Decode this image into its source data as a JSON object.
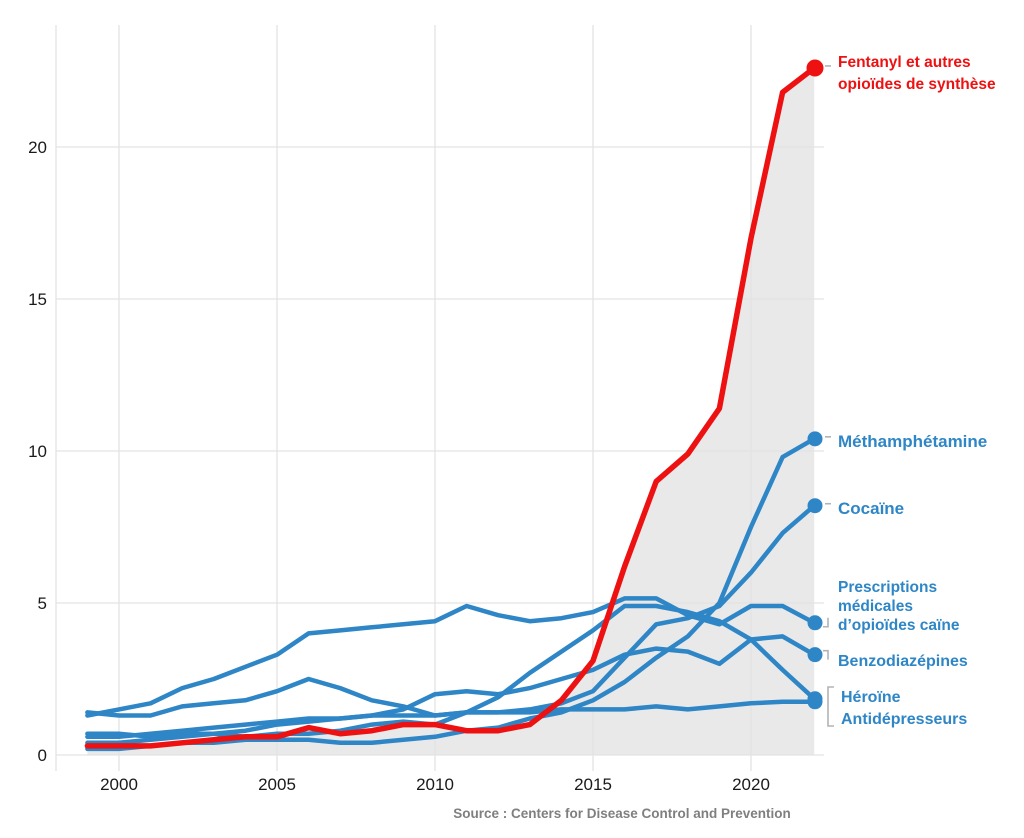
{
  "figure": {
    "source_label": "Source : Centers for Disease Control and Prevention"
  },
  "chart_data": {
    "type": "line",
    "x": [
      1999,
      2000,
      2001,
      2002,
      2003,
      2004,
      2005,
      2006,
      2007,
      2008,
      2009,
      2010,
      2011,
      2012,
      2013,
      2014,
      2015,
      2016,
      2017,
      2018,
      2019,
      2020,
      2021,
      2022
    ],
    "x_ticks": [
      2000,
      2005,
      2010,
      2015,
      2020
    ],
    "y_ticks": [
      0,
      5,
      10,
      15,
      20
    ],
    "xlim": [
      1999,
      2022
    ],
    "ylim": [
      0,
      24
    ],
    "grid": true,
    "legend_position": "right-end-labels",
    "colors": {
      "fentanyl_red": "#ee1111",
      "series_blue": "#2e86c6",
      "area_fill": "#e9e9e9",
      "gridline": "#e3e3e3",
      "leader_grey": "#b3b3b3"
    },
    "series": [
      {
        "id": "fentanyl",
        "label_lines": [
          "Fentanyl et autres",
          "opioïdes de synthèse"
        ],
        "color": "#ee1111",
        "area": true,
        "values": [
          0.3,
          0.3,
          0.3,
          0.4,
          0.5,
          0.6,
          0.6,
          0.9,
          0.7,
          0.8,
          1.0,
          1.0,
          0.8,
          0.8,
          1.0,
          1.8,
          3.1,
          6.2,
          9.0,
          9.9,
          11.4,
          17.0,
          21.8,
          22.6
        ]
      },
      {
        "id": "methamphetamine",
        "label_lines": [
          "Méthamphétamine"
        ],
        "color": "#2e86c6",
        "area": false,
        "values": [
          0.2,
          0.2,
          0.3,
          0.4,
          0.4,
          0.5,
          0.5,
          0.5,
          0.4,
          0.4,
          0.5,
          0.6,
          0.8,
          0.9,
          1.2,
          1.4,
          1.8,
          2.4,
          3.2,
          3.9,
          5.0,
          7.5,
          9.8,
          10.4
        ]
      },
      {
        "id": "cocaine",
        "label_lines": [
          "Cocaïne"
        ],
        "color": "#2e86c6",
        "area": false,
        "values": [
          1.4,
          1.3,
          1.3,
          1.6,
          1.7,
          1.8,
          2.1,
          2.5,
          2.2,
          1.8,
          1.6,
          1.3,
          1.4,
          1.4,
          1.5,
          1.7,
          2.1,
          3.2,
          4.3,
          4.5,
          4.9,
          6.0,
          7.3,
          8.2
        ]
      },
      {
        "id": "prescription_opioids",
        "label_lines": [
          "Prescriptions",
          "médicales",
          "d’opioïdes caïne"
        ],
        "color": "#2e86c6",
        "area": false,
        "values": [
          1.3,
          1.5,
          1.7,
          2.2,
          2.5,
          2.9,
          3.3,
          4.0,
          4.1,
          4.2,
          4.3,
          4.4,
          4.9,
          4.6,
          4.4,
          4.5,
          4.7,
          5.15,
          5.15,
          4.6,
          4.3,
          4.9,
          4.9,
          4.35
        ]
      },
      {
        "id": "benzodiazepines",
        "label_lines": [
          "Benzodiazépines"
        ],
        "color": "#2e86c6",
        "area": false,
        "values": [
          0.4,
          0.4,
          0.5,
          0.6,
          0.7,
          0.8,
          1.0,
          1.1,
          1.2,
          1.3,
          1.5,
          2.0,
          2.1,
          2.0,
          2.2,
          2.5,
          2.8,
          3.3,
          3.5,
          3.4,
          3.0,
          3.8,
          3.9,
          3.3
        ]
      },
      {
        "id": "heroin",
        "label_lines": [
          "Héroïne"
        ],
        "color": "#2e86c6",
        "area": false,
        "values": [
          0.7,
          0.7,
          0.6,
          0.7,
          0.7,
          0.6,
          0.7,
          0.7,
          0.8,
          1.0,
          1.1,
          1.0,
          1.4,
          1.9,
          2.7,
          3.4,
          4.1,
          4.9,
          4.9,
          4.7,
          4.4,
          3.8,
          2.8,
          1.85
        ]
      },
      {
        "id": "antidepressants",
        "label_lines": [
          "Antidépresseurs"
        ],
        "color": "#2e86c6",
        "area": false,
        "values": [
          0.6,
          0.6,
          0.7,
          0.8,
          0.9,
          1.0,
          1.1,
          1.2,
          1.2,
          1.3,
          1.3,
          1.3,
          1.4,
          1.4,
          1.4,
          1.5,
          1.5,
          1.5,
          1.6,
          1.5,
          1.6,
          1.7,
          1.75,
          1.75
        ]
      }
    ]
  }
}
